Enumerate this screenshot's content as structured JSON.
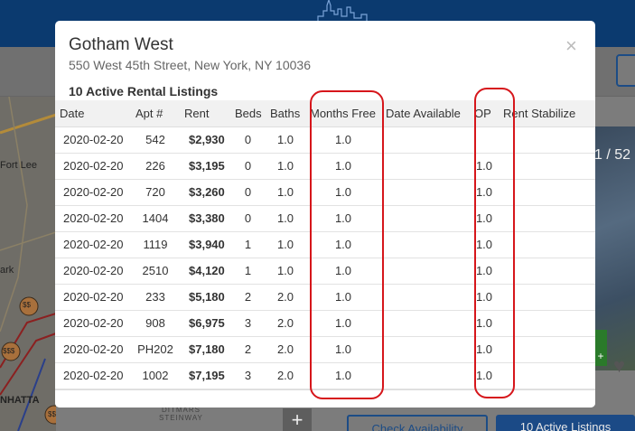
{
  "background": {
    "map_labels": [
      "Fort Lee",
      "ark",
      "NHATTA"
    ],
    "pin_labels": [
      "$$",
      "$$$",
      "$$"
    ],
    "photo_counter": "1 / 52",
    "green_badge": "+",
    "ditmars_label": "DITMARS",
    "steinway_label": "STEINWAY",
    "zoom_plus": "+",
    "check_availability": "Check Availability",
    "active_listings_button": "10 Active Listings"
  },
  "modal": {
    "title": "Gotham West",
    "address": "550 West 45th Street, New York, NY 10036",
    "close_glyph": "×",
    "listing_count": "10 Active Rental Listings"
  },
  "table": {
    "headers": [
      "Date",
      "Apt #",
      "Rent",
      "Beds",
      "Baths",
      "Months Free",
      "Date Available",
      "OP",
      "Rent Stabilize"
    ],
    "rows": [
      {
        "date": "2020-02-20",
        "apt": "542",
        "rent": "$2,930",
        "beds": "0",
        "baths": "1.0",
        "months_free": "1.0",
        "date_available": "",
        "op": "",
        "rent_stabilized": ""
      },
      {
        "date": "2020-02-20",
        "apt": "226",
        "rent": "$3,195",
        "beds": "0",
        "baths": "1.0",
        "months_free": "1.0",
        "date_available": "",
        "op": "1.0",
        "rent_stabilized": ""
      },
      {
        "date": "2020-02-20",
        "apt": "720",
        "rent": "$3,260",
        "beds": "0",
        "baths": "1.0",
        "months_free": "1.0",
        "date_available": "",
        "op": "1.0",
        "rent_stabilized": ""
      },
      {
        "date": "2020-02-20",
        "apt": "1404",
        "rent": "$3,380",
        "beds": "0",
        "baths": "1.0",
        "months_free": "1.0",
        "date_available": "",
        "op": "1.0",
        "rent_stabilized": ""
      },
      {
        "date": "2020-02-20",
        "apt": "1119",
        "rent": "$3,940",
        "beds": "1",
        "baths": "1.0",
        "months_free": "1.0",
        "date_available": "",
        "op": "1.0",
        "rent_stabilized": ""
      },
      {
        "date": "2020-02-20",
        "apt": "2510",
        "rent": "$4,120",
        "beds": "1",
        "baths": "1.0",
        "months_free": "1.0",
        "date_available": "",
        "op": "1.0",
        "rent_stabilized": ""
      },
      {
        "date": "2020-02-20",
        "apt": "233",
        "rent": "$5,180",
        "beds": "2",
        "baths": "2.0",
        "months_free": "1.0",
        "date_available": "",
        "op": "1.0",
        "rent_stabilized": ""
      },
      {
        "date": "2020-02-20",
        "apt": "908",
        "rent": "$6,975",
        "beds": "3",
        "baths": "2.0",
        "months_free": "1.0",
        "date_available": "",
        "op": "1.0",
        "rent_stabilized": ""
      },
      {
        "date": "2020-02-20",
        "apt": "PH202",
        "rent": "$7,180",
        "beds": "2",
        "baths": "2.0",
        "months_free": "1.0",
        "date_available": "",
        "op": "1.0",
        "rent_stabilized": ""
      },
      {
        "date": "2020-02-20",
        "apt": "1002",
        "rent": "$7,195",
        "beds": "3",
        "baths": "2.0",
        "months_free": "1.0",
        "date_available": "",
        "op": "1.0",
        "rent_stabilized": ""
      }
    ]
  },
  "colors": {
    "highlight": "#d6161b",
    "header_brand": "#0b3a6f",
    "button_brand": "#1b4a86"
  }
}
